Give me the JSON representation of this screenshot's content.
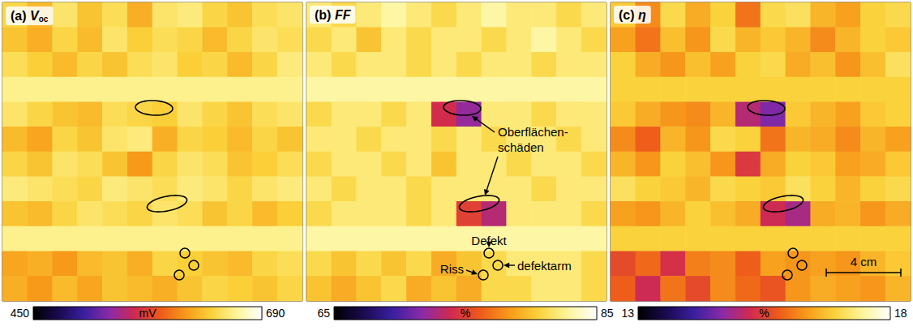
{
  "chart_data": [
    {
      "type": "heatmap",
      "panel": "(a)",
      "quantity": "V",
      "quantity_subscript": "oc",
      "tick_labels": false,
      "colorbar": {
        "range": [
          450,
          690
        ],
        "ticks": [
          450,
          690
        ],
        "unit": "mV"
      },
      "cells": [
        [
          640,
          625,
          650,
          630,
          645,
          620,
          650,
          655,
          640,
          630,
          645,
          650
        ],
        [
          630,
          620,
          640,
          625,
          650,
          635,
          645,
          640,
          625,
          640,
          650,
          645
        ],
        [
          645,
          635,
          625,
          640,
          630,
          645,
          650,
          635,
          640,
          625,
          640,
          655
        ],
        [
          660,
          660,
          660,
          660,
          660,
          660,
          660,
          660,
          660,
          660,
          660,
          660
        ],
        [
          650,
          640,
          630,
          625,
          645,
          640,
          635,
          650,
          640,
          630,
          645,
          650
        ],
        [
          625,
          615,
          640,
          630,
          650,
          655,
          620,
          640,
          635,
          625,
          640,
          630
        ],
        [
          640,
          630,
          650,
          645,
          630,
          610,
          640,
          650,
          645,
          630,
          635,
          645
        ],
        [
          655,
          650,
          645,
          640,
          655,
          650,
          645,
          655,
          650,
          640,
          650,
          655
        ],
        [
          630,
          625,
          640,
          650,
          645,
          640,
          650,
          645,
          630,
          640,
          625,
          635
        ],
        [
          660,
          660,
          660,
          660,
          660,
          660,
          660,
          660,
          660,
          660,
          660,
          660
        ],
        [
          615,
          620,
          610,
          625,
          630,
          620,
          640,
          635,
          630,
          625,
          640,
          645
        ],
        [
          620,
          610,
          625,
          615,
          630,
          625,
          620,
          630,
          640,
          635,
          630,
          640
        ]
      ]
    },
    {
      "type": "heatmap",
      "panel": "(b)",
      "quantity": "FF",
      "tick_labels": false,
      "colorbar": {
        "range": [
          65,
          85
        ],
        "ticks": [
          65,
          85
        ],
        "unit": "%"
      },
      "annotations": {
        "surface": "Oberflächen-schäden",
        "defect": "Defekt",
        "crack": "Riss",
        "low_defect": "defektarm"
      },
      "cells": [
        [
          82,
          81,
          82,
          83,
          82,
          81,
          82,
          83,
          82,
          82,
          81,
          82
        ],
        [
          81,
          82,
          80,
          82,
          81,
          82,
          82,
          81,
          82,
          83,
          82,
          81
        ],
        [
          82,
          81,
          82,
          82,
          81,
          82,
          81,
          82,
          82,
          81,
          82,
          82
        ],
        [
          83,
          83,
          83,
          83,
          83,
          83,
          83,
          83,
          83,
          83,
          83,
          83
        ],
        [
          81,
          82,
          82,
          81,
          82,
          74,
          72,
          82,
          82,
          81,
          82,
          82
        ],
        [
          82,
          82,
          81,
          82,
          82,
          81,
          82,
          81,
          82,
          82,
          81,
          82
        ],
        [
          81,
          82,
          82,
          81,
          82,
          80,
          82,
          82,
          81,
          82,
          82,
          81
        ],
        [
          82,
          81,
          82,
          82,
          81,
          82,
          82,
          82,
          82,
          81,
          82,
          82
        ],
        [
          81,
          82,
          82,
          82,
          81,
          82,
          75,
          73,
          82,
          82,
          82,
          81
        ],
        [
          83,
          83,
          83,
          83,
          83,
          83,
          83,
          83,
          83,
          83,
          83,
          83
        ],
        [
          81,
          80,
          81,
          80,
          81,
          79,
          80,
          81,
          82,
          82,
          82,
          81
        ],
        [
          80,
          79,
          80,
          81,
          79,
          80,
          79,
          81,
          81,
          82,
          82,
          81
        ]
      ]
    },
    {
      "type": "heatmap",
      "panel": "(c)",
      "quantity": "η",
      "tick_labels": false,
      "colorbar": {
        "range": [
          13,
          18
        ],
        "ticks": [
          13,
          18
        ],
        "unit": "%"
      },
      "scale_bar": "4 cm",
      "cells": [
        [
          16.8,
          16.2,
          17.0,
          16.5,
          16.9,
          16.0,
          17.0,
          17.1,
          16.6,
          16.4,
          16.9,
          17.0
        ],
        [
          16.4,
          16.0,
          16.7,
          16.3,
          17.0,
          16.6,
          16.8,
          16.6,
          16.2,
          16.6,
          16.9,
          16.8
        ],
        [
          16.9,
          16.5,
          16.3,
          16.7,
          16.4,
          16.9,
          17.0,
          16.5,
          16.7,
          16.3,
          16.7,
          17.1
        ],
        [
          16.9,
          16.9,
          16.9,
          16.9,
          16.9,
          16.9,
          16.9,
          16.9,
          16.9,
          16.9,
          16.9,
          16.9
        ],
        [
          16.8,
          16.5,
          16.3,
          16.2,
          16.6,
          15.0,
          14.6,
          16.8,
          16.6,
          16.4,
          16.8,
          16.9
        ],
        [
          16.2,
          15.8,
          16.6,
          16.3,
          17.0,
          16.9,
          16.0,
          16.6,
          16.5,
          16.2,
          16.6,
          16.4
        ],
        [
          16.6,
          16.3,
          16.9,
          16.7,
          16.3,
          15.4,
          16.5,
          16.9,
          16.8,
          16.4,
          16.5,
          16.8
        ],
        [
          17.1,
          16.9,
          16.8,
          16.6,
          17.0,
          16.9,
          16.8,
          17.1,
          16.9,
          16.6,
          16.9,
          17.0
        ],
        [
          16.4,
          16.3,
          16.6,
          16.9,
          16.7,
          16.5,
          15.2,
          14.9,
          16.5,
          16.6,
          16.3,
          16.5
        ],
        [
          16.9,
          16.9,
          16.9,
          16.9,
          16.9,
          16.9,
          16.9,
          16.9,
          16.9,
          16.9,
          16.9,
          16.9
        ],
        [
          15.6,
          15.9,
          15.3,
          16.1,
          16.2,
          15.8,
          16.4,
          16.3,
          16.4,
          16.3,
          16.6,
          16.8
        ],
        [
          15.8,
          15.2,
          16.0,
          15.6,
          16.2,
          15.9,
          15.7,
          16.3,
          16.5,
          16.4,
          16.3,
          16.6
        ]
      ]
    }
  ]
}
